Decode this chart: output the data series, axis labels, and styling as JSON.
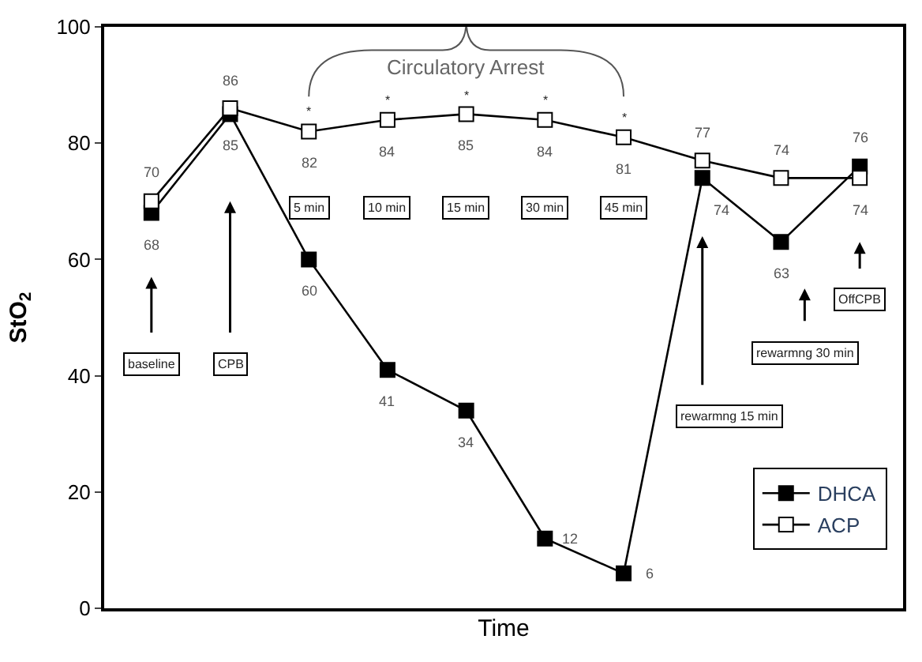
{
  "chart_data": {
    "type": "line",
    "xlabel": "Time",
    "ylabel": "StO$_{2}$",
    "categories": [
      null,
      null,
      null,
      null,
      null,
      null,
      null,
      null,
      null,
      null
    ],
    "series": [
      {
        "name": "DHCA",
        "color": "#000000",
        "values": [
          68,
          85,
          60,
          41,
          34,
          12,
          6,
          74,
          63,
          76
        ]
      },
      {
        "name": "ACP",
        "color": "#ffffff",
        "values": [
          70,
          86,
          82,
          84,
          85,
          84,
          81,
          77,
          74,
          74
        ]
      }
    ],
    "ylim": [
      0,
      100
    ],
    "yticks": [
      0,
      20,
      40,
      60,
      80,
      100
    ],
    "legend": "bottom right",
    "marker": "square",
    "line_style": "solid",
    "data_labels": true,
    "tick_labels": "y",
    "annotations": [
      "baseline",
      "CPB",
      "5 min",
      "10 min",
      "15 min",
      "30 min",
      "45 min",
      "rewarmng 15 min",
      "rewarmng 30 min",
      "OffCPB",
      "Circulatory Arrest",
      "*",
      "*",
      "*",
      "*",
      "*"
    ]
  }
}
